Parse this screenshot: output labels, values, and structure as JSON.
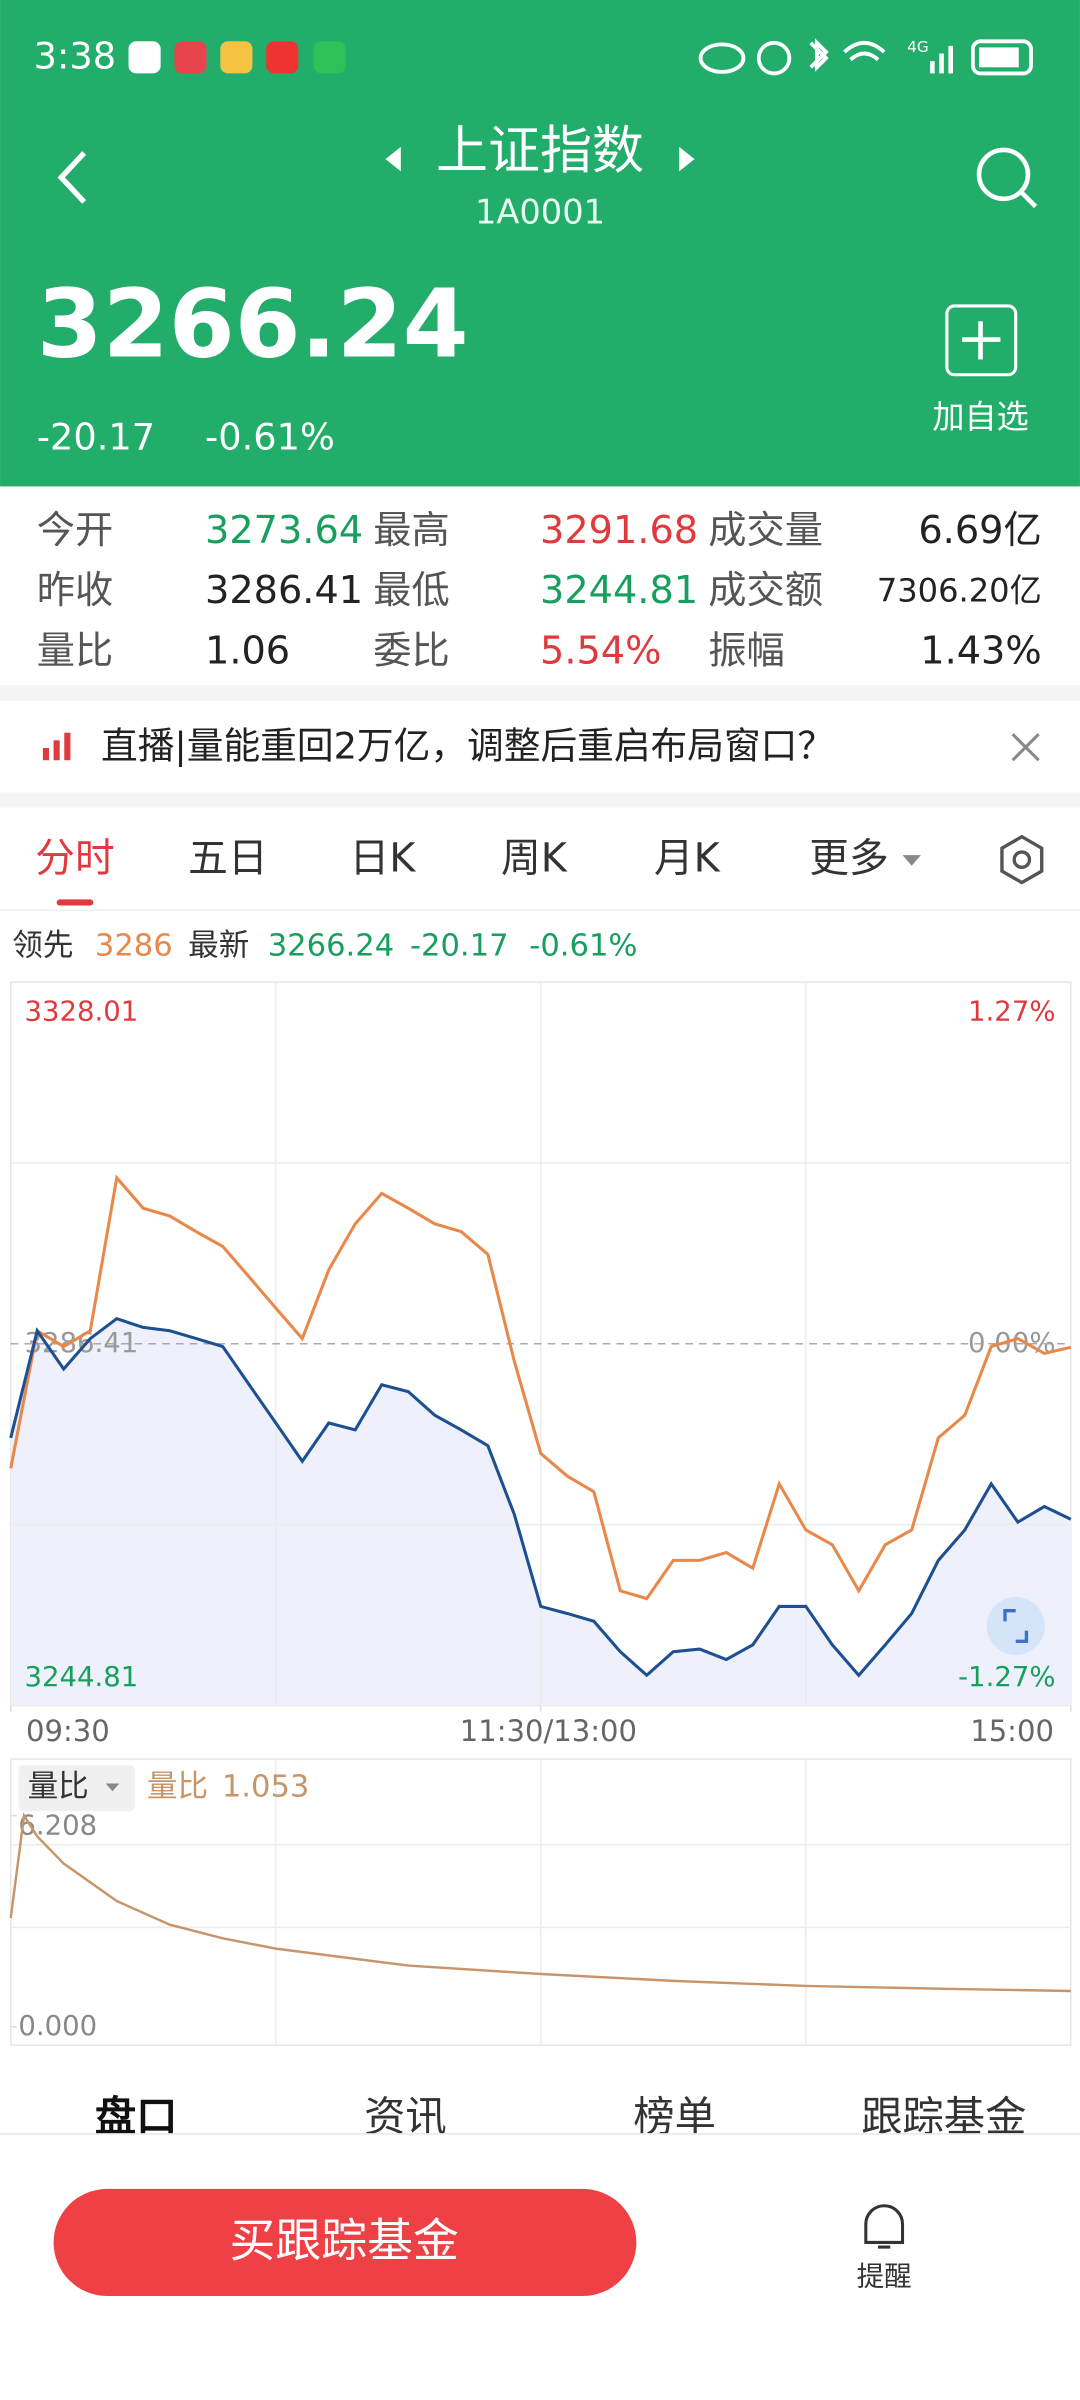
{
  "status_bar": {
    "time": "3:38",
    "network": "4G"
  },
  "header": {
    "title": "上证指数",
    "code": "1A0001",
    "price": "3266.24",
    "change": "-20.17",
    "change_pct": "-0.61%",
    "watch_button": "加自选"
  },
  "stats": [
    {
      "label": "今开",
      "value": "3273.64",
      "color": "#17a05d"
    },
    {
      "label": "最高",
      "value": "3291.68",
      "color": "#e0393e"
    },
    {
      "label": "成交量",
      "value": "6.69亿",
      "color": "#222222"
    },
    {
      "label": "昨收",
      "value": "3286.41",
      "color": "#222222"
    },
    {
      "label": "最低",
      "value": "3244.81",
      "color": "#17a05d"
    },
    {
      "label": "成交额",
      "value": "7306.20亿",
      "color": "#222222"
    },
    {
      "label": "量比",
      "value": "1.06",
      "color": "#222222"
    },
    {
      "label": "委比",
      "value": "5.54%",
      "color": "#e0393e"
    },
    {
      "label": "振幅",
      "value": "1.43%",
      "color": "#222222"
    }
  ],
  "banner": {
    "text": "直播|量能重回2万亿，调整后重启布局窗口？"
  },
  "tabs": {
    "items": [
      "分时",
      "五日",
      "日K",
      "周K",
      "月K",
      "更多"
    ],
    "active": 0
  },
  "quote_line": {
    "lead_value": "3286",
    "latest_value": "3266.24",
    "change": "-20.17",
    "change_pct": "-0.61%"
  },
  "chart_data": [
    {
      "type": "line",
      "x": [
        0,
        6,
        12,
        18,
        24,
        30,
        36,
        42,
        48,
        54,
        60,
        66,
        72,
        78,
        84,
        90,
        96,
        102,
        108,
        114,
        120,
        126,
        132,
        138,
        144,
        150,
        156,
        162,
        168,
        174,
        180,
        186,
        192,
        198,
        204,
        210,
        216,
        222,
        228,
        234,
        240
      ],
      "xlim": [
        0,
        240
      ],
      "xticks": [
        {
          "value": 0,
          "label": "09:30"
        },
        {
          "value": 120,
          "label": "11:30/13:00"
        },
        {
          "value": 240,
          "label": "15:00"
        }
      ],
      "ylim": [
        3244.81,
        3328.01
      ],
      "yticks": [
        3244.81,
        3286.41,
        3328.01
      ],
      "ytick_colors": [
        "#17a05d",
        "#999999",
        "#e0393e"
      ],
      "right_labels": [
        "-1.27%",
        "0.00%",
        "1.27%"
      ],
      "series": [
        {
          "name": "领先",
          "color": "#e8884a",
          "values": [
            3272.1,
            3287.9,
            3286.1,
            3287.9,
            3305.5,
            3302.0,
            3301.1,
            3299.3,
            3297.6,
            3294.1,
            3290.5,
            3287.0,
            3294.9,
            3300.2,
            3303.7,
            3302.0,
            3300.2,
            3299.3,
            3296.7,
            3284.4,
            3273.8,
            3271.2,
            3269.4,
            3258.0,
            3257.1,
            3261.5,
            3261.5,
            3262.4,
            3260.6,
            3270.3,
            3265.0,
            3263.3,
            3258.0,
            3263.3,
            3265.0,
            3275.6,
            3278.2,
            3286.1,
            3287.0,
            3285.3,
            3286.0
          ]
        },
        {
          "name": "最新",
          "color": "#1d4f91",
          "fill": "#eef1fb",
          "values": [
            3275.6,
            3287.9,
            3283.5,
            3287.0,
            3289.3,
            3288.3,
            3287.9,
            3287.0,
            3286.1,
            3281.7,
            3277.3,
            3272.9,
            3277.3,
            3276.5,
            3281.7,
            3280.9,
            3278.2,
            3276.5,
            3274.7,
            3266.8,
            3256.2,
            3255.4,
            3254.5,
            3251.0,
            3248.3,
            3251.0,
            3251.3,
            3250.1,
            3251.8,
            3256.2,
            3256.2,
            3251.8,
            3248.3,
            3251.8,
            3255.4,
            3261.5,
            3265.0,
            3270.3,
            3265.9,
            3267.7,
            3266.24
          ]
        }
      ]
    },
    {
      "type": "line",
      "selector": "量比",
      "x": [
        0,
        3,
        6,
        12,
        24,
        36,
        48,
        60,
        90,
        120,
        150,
        180,
        210,
        240
      ],
      "xlim": [
        0,
        240
      ],
      "ylim": [
        0,
        6.208
      ],
      "yticks": [
        {
          "value": 0,
          "label": "0.000"
        },
        6.208
      ],
      "series": [
        {
          "name": "量比",
          "color": "#c8956a",
          "value_label": "1.053",
          "values": [
            3.2,
            6.208,
            5.6,
            4.8,
            3.7,
            3.0,
            2.6,
            2.3,
            1.8,
            1.55,
            1.35,
            1.2,
            1.12,
            1.053
          ]
        }
      ]
    }
  ],
  "bottom_tabs": [
    "盘口",
    "资讯",
    "榜单",
    "跟踪基金"
  ],
  "buy_button": "买跟踪基金",
  "alert": "提醒"
}
